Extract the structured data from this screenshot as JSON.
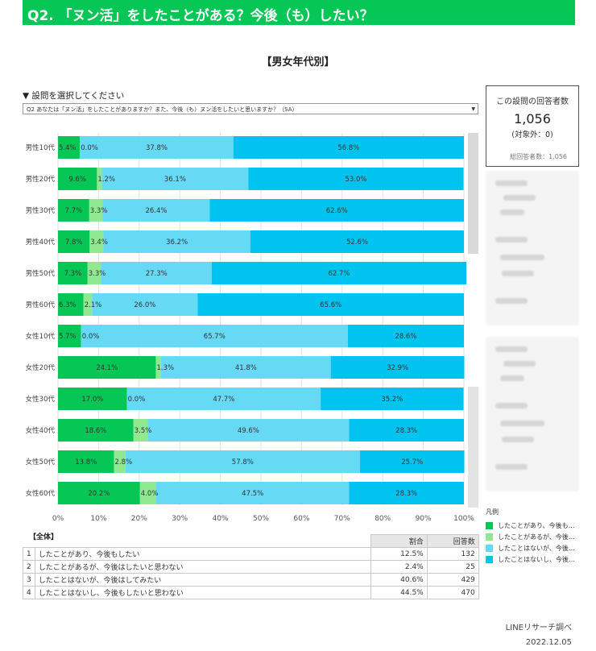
{
  "header": {
    "title": "Q2. 「ヌン活」をしたことがある？今後（も）したい？"
  },
  "section_title": "【男女年代別】",
  "selector": {
    "label": "▼ 設問を選択してください",
    "value": "Q2 あなたは「ヌン活」をしたことがありますか？また、今後（も）ヌン活をしたいと思いますか？（SA）"
  },
  "respondents": {
    "title": "この設問の回答者数",
    "count": "1,056",
    "excluded": "(対象外：0)",
    "total_label": "総回答者数：1,056"
  },
  "chart_data": {
    "type": "bar",
    "orientation": "horizontal",
    "stacked": true,
    "categories": [
      "男性10代",
      "男性20代",
      "男性30代",
      "男性40代",
      "男性50代",
      "男性60代",
      "女性10代",
      "女性20代",
      "女性30代",
      "女性40代",
      "女性50代",
      "女性60代"
    ],
    "series": [
      {
        "name": "したことがあり、今後も…",
        "color": "#06c755",
        "values": [
          5.4,
          9.6,
          7.7,
          7.8,
          7.3,
          6.3,
          5.7,
          24.1,
          17.0,
          18.6,
          13.8,
          20.2
        ]
      },
      {
        "name": "したことがあるが、今後…",
        "color": "#90e890",
        "values": [
          0.0,
          1.2,
          3.3,
          3.4,
          3.3,
          2.1,
          0.0,
          1.3,
          0.0,
          3.5,
          2.8,
          4.0
        ]
      },
      {
        "name": "したことはないが、今後…",
        "color": "#66d9f5",
        "values": [
          37.8,
          36.1,
          26.4,
          36.2,
          27.3,
          26.0,
          65.7,
          41.8,
          47.7,
          49.6,
          57.8,
          47.5
        ]
      },
      {
        "name": "したことはないし、今後…",
        "color": "#00c3f0",
        "values": [
          56.8,
          53.0,
          62.6,
          52.6,
          62.7,
          65.6,
          28.6,
          32.9,
          35.2,
          28.3,
          25.7,
          28.3
        ]
      }
    ],
    "xlim": [
      0,
      100
    ],
    "x_ticks": [
      "0%",
      "10%",
      "20%",
      "30%",
      "40%",
      "50%",
      "60%",
      "70%",
      "80%",
      "90%",
      "100%"
    ],
    "grid": true,
    "legend_title": "凡例",
    "legend_position": "right"
  },
  "summary": {
    "label": "【全体】",
    "headers": [
      "割合",
      "回答数"
    ],
    "rows": [
      {
        "no": "1",
        "text": "したことがあり、今後もしたい",
        "ratio": "12.5%",
        "count": "132"
      },
      {
        "no": "2",
        "text": "したことがあるが、今後はしたいと思わない",
        "ratio": "2.4%",
        "count": "25"
      },
      {
        "no": "3",
        "text": "したことはないが、今後はしてみたい",
        "ratio": "40.6%",
        "count": "429"
      },
      {
        "no": "4",
        "text": "したことはないし、今後もしたいと思わない",
        "ratio": "44.5%",
        "count": "470"
      }
    ]
  },
  "footer": {
    "source": "LINEリサーチ調べ",
    "date": "2022.12.05"
  }
}
